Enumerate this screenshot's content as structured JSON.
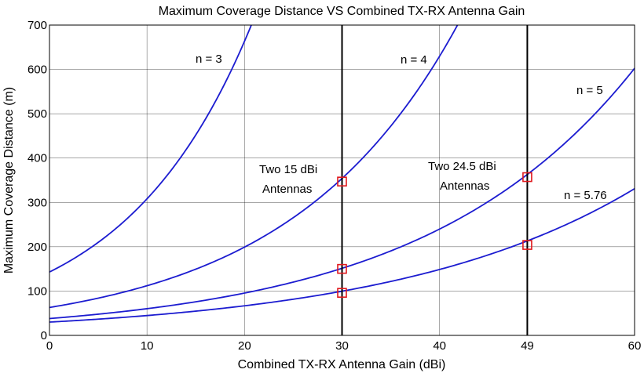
{
  "chart_data": {
    "type": "line",
    "title": "Maximum Coverage Distance VS Combined TX-RX Antenna Gain",
    "xlabel": "Combined TX-RX Antenna Gain (dBi)",
    "ylabel": "Maximum Coverage Distance (m)",
    "xlim": [
      0,
      60
    ],
    "ylim": [
      0,
      700
    ],
    "xticks": [
      0,
      10,
      20,
      30,
      40,
      49,
      60
    ],
    "yticks": [
      0,
      100,
      200,
      300,
      400,
      500,
      600,
      700
    ],
    "grid": true,
    "colors": {
      "curve": "#1c1cd0",
      "marker": "#e0191d",
      "vline": "#000000"
    },
    "series": [
      {
        "label": "n = 3",
        "d0": 143,
        "per10db": 2.154
      },
      {
        "label": "n = 4",
        "d0": 63,
        "per10db": 1.778
      },
      {
        "label": "n = 5",
        "d0": 38,
        "per10db": 1.585
      },
      {
        "label": "n = 5.76",
        "d0": 30,
        "per10db": 1.492
      }
    ],
    "vertical_lines": [
      30,
      49
    ],
    "markers": [
      {
        "x": 30,
        "y": 347
      },
      {
        "x": 30,
        "y": 150
      },
      {
        "x": 30,
        "y": 96
      },
      {
        "x": 49,
        "y": 357
      },
      {
        "x": 49,
        "y": 204
      }
    ],
    "annotations": {
      "n3": "n = 3",
      "n4": "n = 4",
      "n5": "n = 5",
      "n576": "n = 5.76",
      "ann15_line1": "Two 15 dBi",
      "ann15_line2": "Antennas",
      "ann245_line1": "Two 24.5 dBi",
      "ann245_line2": "Antennas"
    }
  }
}
